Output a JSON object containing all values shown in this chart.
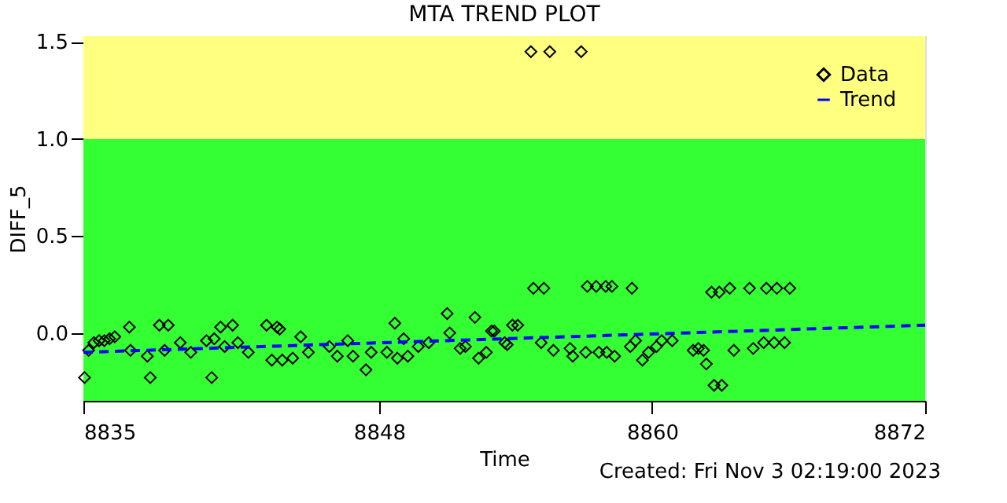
{
  "chart_data": {
    "type": "scatter",
    "title": "MTA TREND PLOT",
    "xlabel": "Time",
    "ylabel": "DIFF_5",
    "xlim": [
      8835,
      8872
    ],
    "xticks": [
      8835,
      8848,
      8860,
      8872
    ],
    "ylim": [
      -0.35,
      1.53
    ],
    "yticks": [
      {
        "value": 0,
        "label": "0.0"
      },
      {
        "value": 0.5,
        "label": "0.5"
      },
      {
        "value": 1,
        "label": "1.0"
      },
      {
        "value": 1.5,
        "label": "1.5"
      }
    ],
    "legend": "top right",
    "bands": [
      {
        "axis": "y",
        "from": -0.35,
        "to": 1.0,
        "color": "#33ff33"
      },
      {
        "axis": "y",
        "from": 1.0,
        "to": 1.53,
        "color": "#ffff80"
      }
    ],
    "annotations": [
      "Created: Fri Nov  3 02:19:00 2023"
    ],
    "series": [
      {
        "name": "Data",
        "marker": "diamond",
        "color": "#000000",
        "x": [
          8835.05,
          8835.23,
          8835.46,
          8835.69,
          8835.92,
          8836.15,
          8836.38,
          8837.02,
          8837.07,
          8837.81,
          8837.94,
          8838.34,
          8838.73,
          8838.57,
          8839.26,
          8839.72,
          8840.41,
          8840.64,
          8840.75,
          8841.03,
          8841.56,
          8841.21,
          8841.79,
          8842.25,
          8843.05,
          8843.51,
          8843.63,
          8843.28,
          8843.74,
          8844.2,
          8844.55,
          8844.89,
          8845.81,
          8846.16,
          8846.62,
          8846.85,
          8847.42,
          8847.65,
          8848.34,
          8848.69,
          8848.8,
          8849.26,
          8849.08,
          8849.72,
          8850.18,
          8850.99,
          8851.1,
          8851.56,
          8851.79,
          8852.21,
          8852.37,
          8852.71,
          8853.06,
          8853.52,
          8852.94,
          8853.63,
          8853.86,
          8854.09,
          8854.78,
          8855.24,
          8855.12,
          8855.66,
          8856.39,
          8856.51,
          8857.15,
          8857.54,
          8857.96,
          8858.23,
          8859.11,
          8857.08,
          8857.66,
          8858.0,
          8858.35,
          8859.04,
          8859.27,
          8859.57,
          8859.84,
          8860.19,
          8860.42,
          8860.88,
          8861.8,
          8862.03,
          8862.26,
          8862.38,
          8862.61,
          8862.95,
          8863.41,
          8864.28,
          8865.02,
          8865.48,
          8866.05,
          8862.72,
          8863.06,
          8863.59,
          8864.44,
          8864.9,
          8865.36,
          8865.82,
          8854.67,
          8855.5,
          8856.88
        ],
        "values": [
          -0.23,
          -0.09,
          -0.05,
          -0.04,
          -0.04,
          -0.03,
          -0.02,
          0.03,
          -0.09,
          -0.12,
          -0.23,
          0.04,
          0.04,
          -0.09,
          -0.05,
          -0.1,
          -0.04,
          -0.23,
          -0.03,
          0.03,
          0.04,
          -0.07,
          -0.05,
          -0.1,
          0.04,
          0.03,
          0.02,
          -0.14,
          -0.14,
          -0.13,
          -0.02,
          -0.1,
          -0.07,
          -0.12,
          -0.04,
          -0.12,
          -0.19,
          -0.1,
          -0.1,
          0.05,
          -0.13,
          -0.12,
          -0.03,
          -0.07,
          -0.05,
          0.1,
          0.0,
          -0.08,
          -0.07,
          0.08,
          -0.13,
          -0.1,
          0.01,
          -0.05,
          0.01,
          -0.06,
          0.04,
          0.04,
          0.23,
          0.23,
          -0.05,
          -0.09,
          -0.08,
          -0.12,
          0.24,
          0.24,
          0.24,
          0.24,
          0.23,
          -0.1,
          -0.1,
          -0.1,
          -0.12,
          -0.07,
          -0.04,
          -0.14,
          -0.1,
          -0.07,
          -0.04,
          -0.04,
          -0.09,
          -0.08,
          -0.09,
          -0.16,
          0.21,
          0.21,
          0.23,
          0.23,
          0.23,
          0.23,
          0.23,
          -0.27,
          -0.27,
          -0.09,
          -0.08,
          -0.05,
          -0.05,
          -0.05,
          1.45,
          1.45,
          1.45
        ]
      },
      {
        "name": "Trend",
        "type": "line",
        "line_style": "dashed",
        "color": "#0000ff",
        "x": [
          8835,
          8872
        ],
        "values": [
          -0.1,
          0.04
        ]
      }
    ]
  }
}
